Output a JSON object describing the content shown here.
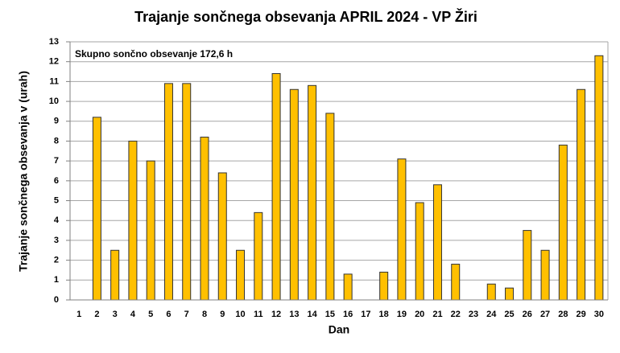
{
  "chart_data": {
    "type": "bar",
    "title": "Trajanje  sončnega obsevanja  APRIL 2024 - VP Žiri",
    "annotation": "Skupno sončno obsevanje 172,6 h",
    "x_label": "Dan",
    "y_label": "Trajanje  sončnega obsevanja  v (urah)",
    "categories": [
      "1",
      "2",
      "3",
      "4",
      "5",
      "6",
      "7",
      "8",
      "9",
      "10",
      "11",
      "12",
      "13",
      "14",
      "15",
      "16",
      "17",
      "18",
      "19",
      "20",
      "21",
      "22",
      "23",
      "24",
      "25",
      "26",
      "27",
      "28",
      "29",
      "30"
    ],
    "values": [
      0,
      9.2,
      2.5,
      8.0,
      7.0,
      10.9,
      10.9,
      8.2,
      6.4,
      2.5,
      4.4,
      11.4,
      10.6,
      10.8,
      9.4,
      1.3,
      0,
      1.4,
      7.1,
      4.9,
      5.8,
      1.8,
      0,
      0.8,
      0.6,
      3.5,
      2.5,
      7.8,
      10.6,
      12.3
    ],
    "color": "#ffc000",
    "ylim": [
      0,
      13
    ],
    "yticks": [
      0,
      1,
      2,
      3,
      4,
      5,
      6,
      7,
      8,
      9,
      10,
      11,
      12,
      13
    ],
    "grid": true
  }
}
